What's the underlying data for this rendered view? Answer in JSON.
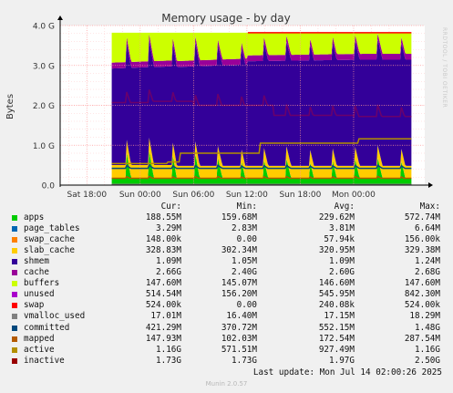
{
  "chart_data": {
    "type": "area",
    "title": "Memory usage - by day",
    "ylabel": "Bytes",
    "watermark": "RRDTOOL / TOBI OETIKER",
    "ylim": [
      0,
      4.0
    ],
    "y_unit": "G",
    "y_ticks": [
      "0.0",
      "1.0 G",
      "2.0 G",
      "3.0 G",
      "4.0 G"
    ],
    "x_ticks": [
      "Sat 18:00",
      "Sun 00:00",
      "Sun 06:00",
      "Sun 12:00",
      "Sun 18:00",
      "Mon 00:00"
    ],
    "x_range_hours": [
      -9,
      32
    ],
    "data_start_hour": -3.2,
    "x_tick_hours": [
      -6,
      0,
      6,
      12,
      18,
      24
    ],
    "stacked_series": [
      {
        "name": "apps",
        "color": "#00cc00",
        "value": 0.188
      },
      {
        "name": "page_tables",
        "color": "#0066b3",
        "value": 0.003
      },
      {
        "name": "swap_cache",
        "color": "#ff8000",
        "value": 0.0001
      },
      {
        "name": "slab_cache",
        "color": "#ffcc00",
        "value": 0.329
      },
      {
        "name": "shmem",
        "color": "#330099",
        "value": 0.001
      },
      {
        "name": "cache",
        "color": "#330099",
        "value": 2.66
      },
      {
        "name": "buffers",
        "color": "#990099",
        "value": 0.148
      },
      {
        "name": "unused",
        "color": "#ccff00",
        "value": 0.515
      }
    ],
    "line_series": [
      {
        "name": "swap",
        "color": "#ff0000"
      },
      {
        "name": "vmalloc_used",
        "color": "#808080"
      },
      {
        "name": "committed",
        "color": "#00487d"
      },
      {
        "name": "mapped",
        "color": "#b35a00"
      },
      {
        "name": "active",
        "color": "#b38f00"
      },
      {
        "name": "inactive",
        "color": "#6b006b"
      }
    ]
  },
  "legend": {
    "headers": {
      "cur": "Cur:",
      "min": "Min:",
      "avg": "Avg:",
      "max": "Max:"
    },
    "rows": [
      {
        "name": "apps",
        "color": "#00cc00",
        "cur": "188.55M",
        "min": "159.68M",
        "avg": "229.62M",
        "max": "572.74M"
      },
      {
        "name": "page_tables",
        "color": "#0066b3",
        "cur": "3.29M",
        "min": "2.83M",
        "avg": "3.81M",
        "max": "6.64M"
      },
      {
        "name": "swap_cache",
        "color": "#ff8000",
        "cur": "148.00k",
        "min": "0.00",
        "avg": "57.94k",
        "max": "156.00k"
      },
      {
        "name": "slab_cache",
        "color": "#ffcc00",
        "cur": "328.83M",
        "min": "302.34M",
        "avg": "320.95M",
        "max": "329.38M"
      },
      {
        "name": "shmem",
        "color": "#330099",
        "cur": "1.09M",
        "min": "1.05M",
        "avg": "1.09M",
        "max": "1.24M"
      },
      {
        "name": "cache",
        "color": "#990099",
        "cur": "2.66G",
        "min": "2.40G",
        "avg": "2.60G",
        "max": "2.68G"
      },
      {
        "name": "buffers",
        "color": "#ccff00",
        "cur": "147.60M",
        "min": "145.07M",
        "avg": "146.60M",
        "max": "147.60M"
      },
      {
        "name": "unused",
        "color": "#aa00cc",
        "cur": "514.54M",
        "min": "156.20M",
        "avg": "545.95M",
        "max": "842.30M"
      },
      {
        "name": "swap",
        "color": "#ff0000",
        "cur": "524.00k",
        "min": "0.00",
        "avg": "240.08k",
        "max": "524.00k"
      },
      {
        "name": "vmalloc_used",
        "color": "#808080",
        "cur": "17.01M",
        "min": "16.40M",
        "avg": "17.15M",
        "max": "18.29M"
      },
      {
        "name": "committed",
        "color": "#00487d",
        "cur": "421.29M",
        "min": "370.72M",
        "avg": "552.15M",
        "max": "1.48G"
      },
      {
        "name": "mapped",
        "color": "#b35a00",
        "cur": "147.93M",
        "min": "102.03M",
        "avg": "172.54M",
        "max": "287.54M"
      },
      {
        "name": "active",
        "color": "#b38f00",
        "cur": "1.16G",
        "min": "571.51M",
        "avg": "927.49M",
        "max": "1.16G"
      },
      {
        "name": "inactive",
        "color": "#990000",
        "cur": "1.73G",
        "min": "1.73G",
        "avg": "1.97G",
        "max": "2.50G"
      }
    ]
  },
  "footer": {
    "last_update": "Last update: Mon Jul 14 02:00:26 2025",
    "generator": "Munin 2.0.57"
  }
}
